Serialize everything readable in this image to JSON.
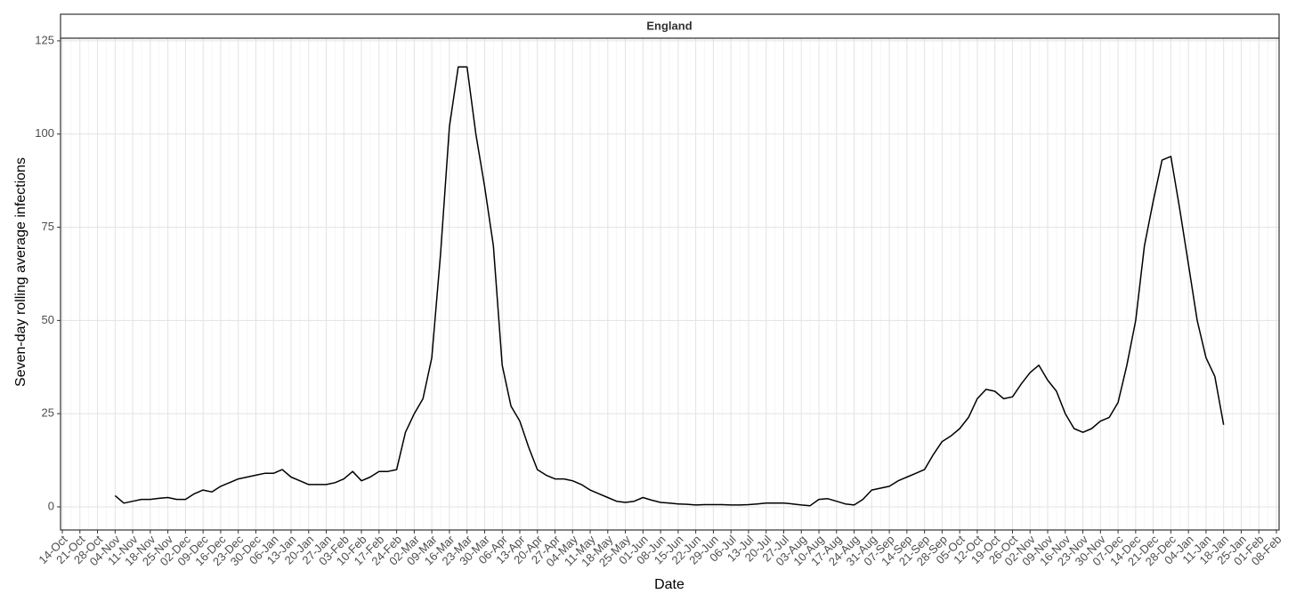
{
  "chart_data": {
    "type": "line",
    "title": "England",
    "x_label": "Date",
    "y_label": "Seven-day rolling average infections",
    "categories": [
      "14-Oct",
      null,
      "21-Oct",
      null,
      "28-Oct",
      null,
      "04-Nov",
      null,
      "11-Nov",
      null,
      "18-Nov",
      null,
      "25-Nov",
      null,
      "02-Dec",
      null,
      "09-Dec",
      null,
      "16-Dec",
      null,
      "23-Dec",
      null,
      "30-Dec",
      null,
      "06-Jan",
      null,
      "13-Jan",
      null,
      "20-Jan",
      null,
      "27-Jan",
      null,
      "03-Feb",
      null,
      "10-Feb",
      null,
      "17-Feb",
      null,
      "24-Feb",
      null,
      "02-Mar",
      null,
      "09-Mar",
      null,
      "16-Mar",
      null,
      "23-Mar",
      null,
      "30-Mar",
      null,
      "06-Apr",
      null,
      "13-Apr",
      null,
      "20-Apr",
      null,
      "27-Apr",
      null,
      "04-May",
      null,
      "11-May",
      null,
      "18-May",
      null,
      "25-May",
      null,
      "01-Jun",
      null,
      "08-Jun",
      null,
      "15-Jun",
      null,
      "22-Jun",
      null,
      "29-Jun",
      null,
      "06-Jul",
      null,
      "13-Jul",
      null,
      "20-Jul",
      null,
      "27-Jul",
      null,
      "03-Aug",
      null,
      "10-Aug",
      null,
      "17-Aug",
      null,
      "24-Aug",
      null,
      "31-Aug",
      null,
      "07-Sep",
      null,
      "14-Sep",
      null,
      "21-Sep",
      null,
      "28-Sep",
      null,
      "05-Oct",
      null,
      "12-Oct",
      null,
      "19-Oct",
      null,
      "26-Oct",
      null,
      "02-Nov",
      null,
      "09-Nov",
      null,
      "16-Nov",
      null,
      "23-Nov",
      null,
      "30-Nov",
      null,
      "07-Dec",
      null,
      "14-Dec",
      null,
      "21-Dec",
      null,
      "28-Dec",
      null,
      "04-Jan",
      null,
      "11-Jan",
      null,
      "18-Jan",
      null,
      "25-Jan",
      null,
      "01-Feb",
      null,
      "08-Feb"
    ],
    "series": [
      {
        "name": "England",
        "color": "#000000",
        "values": [
          null,
          null,
          null,
          null,
          null,
          null,
          3,
          1,
          1.5,
          2,
          2,
          2.3,
          2.5,
          2,
          2,
          3.5,
          4.5,
          4,
          5.5,
          6.5,
          7.5,
          8,
          8.5,
          9,
          9,
          10,
          8,
          7,
          6,
          6,
          6,
          6.5,
          7.5,
          9.5,
          7,
          8,
          9.5,
          9.5,
          10,
          20,
          25,
          29,
          40,
          68,
          102,
          118,
          118,
          100,
          86,
          70,
          38,
          27,
          23,
          16,
          10,
          8.5,
          7.5,
          7.5,
          7,
          6,
          4.5,
          3.5,
          2.5,
          1.5,
          1.2,
          1.5,
          2.5,
          1.8,
          1.2,
          1,
          0.8,
          0.7,
          0.5,
          0.6,
          0.6,
          0.6,
          0.5,
          0.5,
          0.6,
          0.8,
          1,
          1,
          1,
          0.8,
          0.5,
          0.3,
          2,
          2.2,
          1.5,
          0.8,
          0.5,
          2,
          4.5,
          5,
          5.5,
          7,
          8,
          9,
          10,
          14,
          17.5,
          19,
          21,
          24,
          29,
          31.5,
          31,
          29,
          29.5,
          33,
          36,
          38,
          34,
          31,
          25,
          21,
          20,
          21,
          23,
          24,
          28,
          38,
          50,
          70,
          82,
          93,
          94,
          80,
          65,
          50,
          40,
          35,
          22,
          null,
          null,
          null,
          null,
          null,
          null
        ]
      }
    ],
    "ylim": [
      -6.2,
      125.7
    ],
    "yticks": [
      0,
      25,
      50,
      75,
      100,
      125
    ],
    "grid": true
  }
}
